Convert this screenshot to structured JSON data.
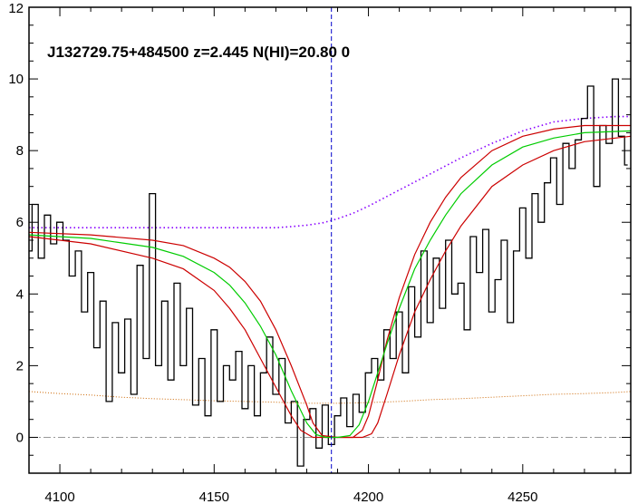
{
  "chart_data": {
    "type": "line",
    "title": "J132729.75+484500 z=2.445 N(HI)=20.80 0",
    "xlabel": "",
    "ylabel": "",
    "xlim": [
      4090,
      4285
    ],
    "ylim": [
      -1,
      12
    ],
    "x_ticks": [
      4100,
      4150,
      4200,
      4250
    ],
    "y_ticks": [
      0,
      2,
      4,
      6,
      8,
      10,
      12
    ],
    "grid": false,
    "colors": {
      "flux": "#000000",
      "model": "#00cc00",
      "model_bounds": "#cc0000",
      "continuum": "#8800ff",
      "error": "#cc6600",
      "zero_line": "#999999",
      "marker": "#0000cc"
    },
    "absorber_center": 4188,
    "zero_level": 0,
    "flux": {
      "x": [
        4090,
        4092,
        4094,
        4096,
        4098,
        4100,
        4102,
        4104,
        4106,
        4108,
        4110,
        4112,
        4114,
        4116,
        4118,
        4120,
        4122,
        4124,
        4126,
        4128,
        4130,
        4132,
        4134,
        4136,
        4138,
        4140,
        4142,
        4144,
        4146,
        4148,
        4150,
        4152,
        4154,
        4156,
        4158,
        4160,
        4162,
        4164,
        4166,
        4168,
        4170,
        4172,
        4174,
        4176,
        4178,
        4180,
        4182,
        4184,
        4186,
        4188,
        4190,
        4192,
        4194,
        4196,
        4198,
        4200,
        4202,
        4204,
        4206,
        4208,
        4210,
        4212,
        4214,
        4216,
        4218,
        4220,
        4222,
        4224,
        4226,
        4228,
        4230,
        4232,
        4234,
        4236,
        4238,
        4240,
        4242,
        4244,
        4246,
        4248,
        4250,
        4252,
        4254,
        4256,
        4258,
        4260,
        4262,
        4264,
        4266,
        4268,
        4270,
        4272,
        4274,
        4276,
        4278,
        4280,
        4282,
        4284
      ],
      "y": [
        5.2,
        6.5,
        5.0,
        6.2,
        5.4,
        6.0,
        5.5,
        4.5,
        5.2,
        3.5,
        4.6,
        2.5,
        3.8,
        1.0,
        3.2,
        1.8,
        3.3,
        1.2,
        4.8,
        2.2,
        6.8,
        2.0,
        3.8,
        1.6,
        4.3,
        2.0,
        3.6,
        0.9,
        2.2,
        0.6,
        3.0,
        1.0,
        2.0,
        1.6,
        2.4,
        0.8,
        2.0,
        0.6,
        1.8,
        2.8,
        1.2,
        2.2,
        0.4,
        1.0,
        -0.8,
        0.5,
        0.8,
        -0.3,
        0.9,
        -0.2,
        0.6,
        1.1,
        0.3,
        1.2,
        0.7,
        1.8,
        2.2,
        1.6,
        3.0,
        2.2,
        3.5,
        1.8,
        4.2,
        2.8,
        5.2,
        3.2,
        5.0,
        3.6,
        5.5,
        4.0,
        4.3,
        3.0,
        5.6,
        4.6,
        5.8,
        3.5,
        4.4,
        5.5,
        3.2,
        5.2,
        6.4,
        5.0,
        6.8,
        6.0,
        7.1,
        7.8,
        6.5,
        8.2,
        7.5,
        8.3,
        8.9,
        9.8,
        7.0,
        8.7,
        8.2,
        10.0,
        8.4,
        7.6
      ]
    },
    "series": [
      {
        "name": "",
        "role": "model",
        "x": [
          4090,
          4110,
          4130,
          4140,
          4150,
          4155,
          4160,
          4165,
          4170,
          4175,
          4180,
          4183,
          4186,
          4190,
          4194,
          4197,
          4200,
          4203,
          4206,
          4210,
          4215,
          4220,
          4225,
          4230,
          4240,
          4250,
          4260,
          4270,
          4285
        ],
        "y": [
          5.65,
          5.55,
          5.3,
          5.05,
          4.6,
          4.25,
          3.75,
          3.1,
          2.3,
          1.3,
          0.4,
          0.08,
          0.0,
          0.0,
          0.05,
          0.35,
          1.0,
          1.8,
          2.6,
          3.6,
          4.7,
          5.5,
          6.2,
          6.8,
          7.6,
          8.1,
          8.35,
          8.5,
          8.55
        ]
      },
      {
        "name": "",
        "role": "upper_bound",
        "x": [
          4090,
          4110,
          4130,
          4140,
          4150,
          4155,
          4160,
          4165,
          4170,
          4175,
          4180,
          4182,
          4185,
          4190,
          4195,
          4198,
          4200,
          4203,
          4206,
          4210,
          4215,
          4220,
          4225,
          4230,
          4240,
          4250,
          4260,
          4270,
          4285
        ],
        "y": [
          5.72,
          5.65,
          5.5,
          5.35,
          5.0,
          4.75,
          4.35,
          3.8,
          3.0,
          2.0,
          0.9,
          0.4,
          0.05,
          0.0,
          0.0,
          0.2,
          0.6,
          1.6,
          2.7,
          3.9,
          5.1,
          6.0,
          6.7,
          7.25,
          8.0,
          8.4,
          8.6,
          8.7,
          8.7
        ]
      },
      {
        "name": "",
        "role": "lower_bound",
        "x": [
          4090,
          4110,
          4130,
          4140,
          4150,
          4155,
          4160,
          4165,
          4170,
          4175,
          4178,
          4182,
          4186,
          4190,
          4194,
          4198,
          4201,
          4203,
          4206,
          4210,
          4215,
          4220,
          4225,
          4230,
          4240,
          4250,
          4260,
          4270,
          4285
        ],
        "y": [
          5.6,
          5.4,
          5.0,
          4.7,
          4.1,
          3.6,
          3.0,
          2.2,
          1.4,
          0.6,
          0.2,
          0.0,
          0.0,
          0.0,
          0.0,
          0.0,
          0.1,
          0.4,
          1.2,
          2.3,
          3.5,
          4.4,
          5.2,
          5.9,
          7.0,
          7.6,
          8.0,
          8.25,
          8.4
        ]
      },
      {
        "name": "",
        "role": "continuum",
        "x": [
          4090,
          4110,
          4130,
          4150,
          4160,
          4170,
          4175,
          4180,
          4185,
          4190,
          4195,
          4200,
          4210,
          4220,
          4230,
          4240,
          4250,
          4260,
          4270,
          4280,
          4285
        ],
        "y": [
          5.85,
          5.85,
          5.85,
          5.85,
          5.85,
          5.85,
          5.88,
          5.92,
          5.98,
          6.1,
          6.25,
          6.45,
          6.9,
          7.35,
          7.8,
          8.2,
          8.55,
          8.8,
          8.9,
          8.95,
          8.95
        ]
      },
      {
        "name": "",
        "role": "error",
        "x": [
          4090,
          4100,
          4110,
          4120,
          4130,
          4140,
          4150,
          4160,
          4170,
          4180,
          4190,
          4200,
          4210,
          4220,
          4230,
          4240,
          4250,
          4260,
          4270,
          4280,
          4285
        ],
        "y": [
          1.28,
          1.22,
          1.18,
          1.12,
          1.08,
          1.05,
          1.02,
          1.0,
          0.98,
          0.95,
          0.95,
          0.97,
          1.0,
          1.05,
          1.08,
          1.12,
          1.16,
          1.2,
          1.22,
          1.25,
          1.28
        ]
      }
    ]
  }
}
